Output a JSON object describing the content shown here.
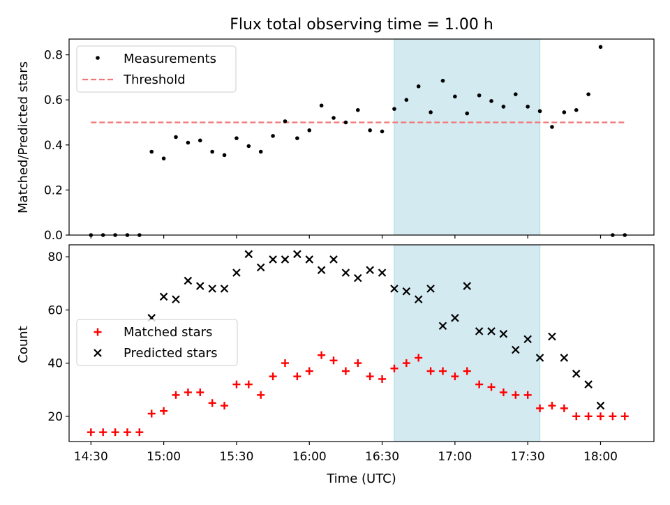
{
  "chart_data": [
    {
      "type": "scatter",
      "title": "Flux total observing time = 1.00 h",
      "ylabel": "Matched/Predicted stars",
      "xlabel": "",
      "ylim": [
        0,
        0.87
      ],
      "yticks": [
        0.0,
        0.2,
        0.4,
        0.6,
        0.8
      ],
      "ytick_labels": [
        "0.0",
        "0.2",
        "0.4",
        "0.6",
        "0.8"
      ],
      "legend_position": "top-left",
      "highlight_span": {
        "start": "16:35",
        "end": "17:35",
        "color": "#d4eaf1"
      },
      "threshold": {
        "name": "Threshold",
        "value": 0.5,
        "x_start": "14:30",
        "x_end": "18:10",
        "color": "#f07878",
        "style": "dashed"
      },
      "series": [
        {
          "name": "Measurements",
          "marker": "dot",
          "color": "#000000",
          "x": [
            "14:30",
            "14:35",
            "14:40",
            "14:45",
            "14:50",
            "14:55",
            "15:00",
            "15:05",
            "15:10",
            "15:15",
            "15:20",
            "15:25",
            "15:30",
            "15:35",
            "15:40",
            "15:45",
            "15:50",
            "15:55",
            "16:00",
            "16:05",
            "16:10",
            "16:15",
            "16:20",
            "16:25",
            "16:30",
            "16:35",
            "16:40",
            "16:45",
            "16:50",
            "16:55",
            "17:00",
            "17:05",
            "17:10",
            "17:15",
            "17:20",
            "17:25",
            "17:30",
            "17:35",
            "17:40",
            "17:45",
            "17:50",
            "17:55",
            "18:00",
            "18:05",
            "18:10"
          ],
          "y": [
            0.0,
            0.0,
            0.0,
            0.0,
            0.0,
            0.37,
            0.34,
            0.435,
            0.41,
            0.42,
            0.37,
            0.355,
            0.43,
            0.395,
            0.37,
            0.44,
            0.505,
            0.43,
            0.465,
            0.575,
            0.52,
            0.5,
            0.555,
            0.465,
            0.46,
            0.56,
            0.6,
            0.66,
            0.545,
            0.685,
            0.615,
            0.54,
            0.62,
            0.595,
            0.57,
            0.625,
            0.57,
            0.55,
            0.48,
            0.545,
            0.555,
            0.625,
            0.835,
            0.0,
            0.0
          ]
        }
      ]
    },
    {
      "type": "scatter",
      "title": "",
      "xlabel": "Time (UTC)",
      "ylabel": "Count",
      "ylim": [
        10.5,
        84.5
      ],
      "yticks": [
        20,
        40,
        60,
        80
      ],
      "ytick_labels": [
        "20",
        "40",
        "60",
        "80"
      ],
      "xticks": [
        "14:30",
        "15:00",
        "15:30",
        "16:00",
        "16:30",
        "17:00",
        "17:30",
        "18:00"
      ],
      "xlim": [
        "14:21",
        "18:22"
      ],
      "legend_position": "center-left",
      "highlight_span": {
        "start": "16:35",
        "end": "17:35",
        "color": "#d4eaf1"
      },
      "series": [
        {
          "name": "Matched stars",
          "marker": "plus",
          "color": "#ff0000",
          "x": [
            "14:30",
            "14:35",
            "14:40",
            "14:45",
            "14:50",
            "14:55",
            "15:00",
            "15:05",
            "15:10",
            "15:15",
            "15:20",
            "15:25",
            "15:30",
            "15:35",
            "15:40",
            "15:45",
            "15:50",
            "15:55",
            "16:00",
            "16:05",
            "16:10",
            "16:15",
            "16:20",
            "16:25",
            "16:30",
            "16:35",
            "16:40",
            "16:45",
            "16:50",
            "16:55",
            "17:00",
            "17:05",
            "17:10",
            "17:15",
            "17:20",
            "17:25",
            "17:30",
            "17:35",
            "17:40",
            "17:45",
            "17:50",
            "17:55",
            "18:00",
            "18:05",
            "18:10"
          ],
          "y": [
            14,
            14,
            14,
            14,
            14,
            21,
            22,
            28,
            29,
            29,
            25,
            24,
            32,
            32,
            28,
            35,
            40,
            35,
            37,
            43,
            41,
            37,
            40,
            35,
            34,
            38,
            40,
            42,
            37,
            37,
            35,
            37,
            32,
            31,
            29,
            28,
            28,
            23,
            24,
            23,
            20,
            20,
            20,
            20,
            20
          ]
        },
        {
          "name": "Predicted stars",
          "marker": "x",
          "color": "#000000",
          "x": [
            "14:55",
            "15:00",
            "15:05",
            "15:10",
            "15:15",
            "15:20",
            "15:25",
            "15:30",
            "15:35",
            "15:40",
            "15:45",
            "15:50",
            "15:55",
            "16:00",
            "16:05",
            "16:10",
            "16:15",
            "16:20",
            "16:25",
            "16:30",
            "16:35",
            "16:40",
            "16:45",
            "16:50",
            "16:55",
            "17:00",
            "17:05",
            "17:10",
            "17:15",
            "17:20",
            "17:25",
            "17:30",
            "17:35",
            "17:40",
            "17:45",
            "17:50",
            "17:55",
            "18:00"
          ],
          "y": [
            57,
            65,
            64,
            71,
            69,
            68,
            68,
            74,
            81,
            76,
            79,
            79,
            81,
            79,
            75,
            79,
            74,
            72,
            75,
            74,
            68,
            67,
            64,
            68,
            54,
            57,
            69,
            52,
            52,
            51,
            45,
            49,
            42,
            50,
            42,
            36,
            32,
            24
          ]
        }
      ]
    }
  ]
}
